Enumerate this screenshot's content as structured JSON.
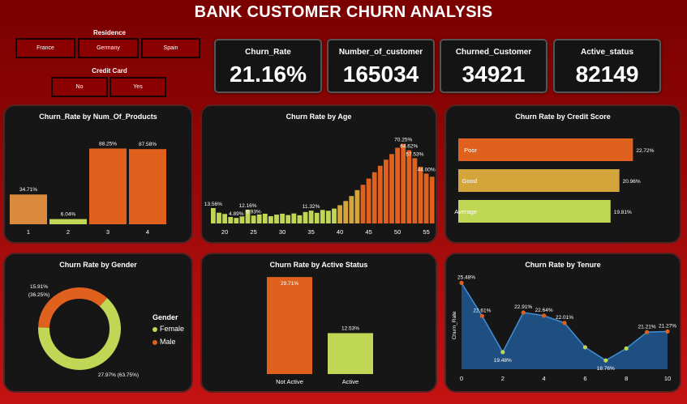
{
  "title": "BANK CUSTOMER CHURN ANALYSIS",
  "colors": {
    "orange": "#E0611E",
    "light_orange": "#D98A3D",
    "mustard": "#D3A53A",
    "lime": "#C0D755",
    "blue_area": "#1F4F80",
    "blue_line": "#3E8FD8"
  },
  "filters": {
    "residence": {
      "label": "Residence",
      "options": [
        "France",
        "Germany",
        "Spain"
      ]
    },
    "credit_card": {
      "label": "Credit Card",
      "options": [
        "No",
        "Yes"
      ]
    }
  },
  "kpis": [
    {
      "label": "Churn_Rate",
      "value": "21.16%"
    },
    {
      "label": "Number_of_customer",
      "value": "165034"
    },
    {
      "label": "Churned_Customer",
      "value": "34921"
    },
    {
      "label": "Active_status",
      "value": "82149"
    }
  ],
  "chart_data": [
    {
      "id": "products",
      "type": "bar",
      "title": "Churn_Rate by Num_Of_Products",
      "categories": [
        "1",
        "2",
        "3",
        "4"
      ],
      "values": [
        34.71,
        6.04,
        88.25,
        87.58
      ],
      "labels": [
        "34.71%",
        "6.04%",
        "88.25%",
        "87.58%"
      ],
      "ylim": [
        0,
        100
      ]
    },
    {
      "id": "age",
      "type": "bar",
      "title": "Churn Rate by Age",
      "x": [
        18,
        19,
        20,
        21,
        22,
        23,
        24,
        25,
        26,
        27,
        28,
        29,
        30,
        31,
        32,
        33,
        34,
        35,
        36,
        37,
        38,
        39,
        40,
        41,
        42,
        43,
        44,
        45,
        46,
        47,
        48,
        49,
        50,
        51,
        52,
        53,
        54,
        55,
        56
      ],
      "values": [
        13.56,
        9.5,
        8.4,
        5.7,
        4.89,
        6.2,
        12.16,
        6.93,
        7.9,
        8.6,
        6.4,
        7.8,
        8.6,
        7.4,
        8.8,
        7.2,
        10.1,
        11.32,
        9.4,
        11.9,
        11.2,
        13.1,
        16.1,
        19.8,
        24.2,
        29.4,
        34.1,
        39.6,
        45.2,
        50.9,
        56.3,
        61.2,
        66.8,
        70.25,
        64.62,
        57.53,
        50.1,
        44.0,
        41.2
      ],
      "tick_labels": [
        "20",
        "25",
        "30",
        "35",
        "40",
        "45",
        "50",
        "55"
      ],
      "tick_values": [
        20,
        25,
        30,
        35,
        40,
        45,
        50,
        55
      ],
      "annotations": [
        {
          "x": 18,
          "text": "13.56%"
        },
        {
          "x": 22,
          "text": "4.89%"
        },
        {
          "x": 24,
          "text": "12.16%"
        },
        {
          "x": 25,
          "text": "6.93%"
        },
        {
          "x": 35,
          "text": "11.32%"
        },
        {
          "x": 51,
          "text": "70.25%"
        },
        {
          "x": 52,
          "text": "64.62%"
        },
        {
          "x": 53,
          "text": "57.53%"
        },
        {
          "x": 55,
          "text": "44.00%"
        }
      ],
      "ylim": [
        0,
        75
      ]
    },
    {
      "id": "credit",
      "type": "bar",
      "orientation": "horizontal",
      "title": "Churn Rate by Credit Score",
      "categories": [
        "Poor",
        "Good",
        "Average"
      ],
      "values": [
        22.72,
        20.96,
        19.81
      ],
      "labels": [
        "22.72%",
        "20.96%",
        "19.81%"
      ],
      "xlim": [
        0,
        23
      ]
    },
    {
      "id": "gender",
      "type": "pie",
      "title": "Churn Rate by Gender",
      "legend_title": "Gender",
      "slices": [
        {
          "name": "Female",
          "value": 27.97,
          "label": "27.97% (63.75%)"
        },
        {
          "name": "Male",
          "value": 15.91,
          "label": "15.91% (36.25%)"
        }
      ]
    },
    {
      "id": "active",
      "type": "bar",
      "title": "Churn Rate by Active Status",
      "categories": [
        "Not Active",
        "Active"
      ],
      "values": [
        29.71,
        12.53
      ],
      "labels": [
        "29.71%",
        "12.53%"
      ],
      "ylim": [
        0,
        30
      ]
    },
    {
      "id": "tenure",
      "type": "area",
      "title": "Churn Rate by Tenure",
      "ylabel": "Churn_Rate",
      "x": [
        0,
        1,
        2,
        3,
        4,
        5,
        6,
        7,
        8,
        9,
        10
      ],
      "values": [
        25.48,
        22.61,
        19.48,
        22.91,
        22.64,
        22.01,
        19.9,
        18.76,
        19.8,
        21.21,
        21.27
      ],
      "labels": [
        "25.48%",
        "22.61%",
        "19.48%",
        "22.91%",
        "22.64%",
        "22.01%",
        "",
        "18.76%",
        "",
        "21.21%",
        "21.27%"
      ],
      "tick_labels": [
        "0",
        "2",
        "4",
        "6",
        "8",
        "10"
      ],
      "ylim": [
        18,
        26
      ]
    }
  ]
}
